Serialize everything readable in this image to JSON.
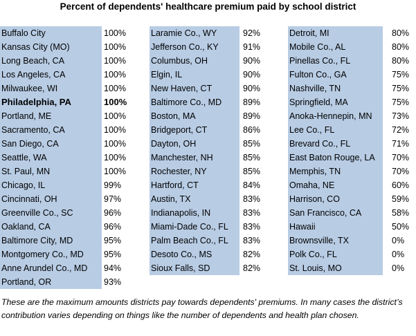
{
  "title": "Percent of dependents' healthcare premium paid by school district",
  "columns": [
    [
      {
        "name": "Buffalo City",
        "value": "100%"
      },
      {
        "name": "Kansas City (MO)",
        "value": "100%"
      },
      {
        "name": "Long Beach, CA",
        "value": "100%"
      },
      {
        "name": "Los Angeles, CA",
        "value": "100%"
      },
      {
        "name": "Milwaukee, WI",
        "value": "100%"
      },
      {
        "name": "Philadelphia, PA",
        "value": "100%",
        "bold": true
      },
      {
        "name": "Portland, ME",
        "value": "100%"
      },
      {
        "name": "Sacramento, CA",
        "value": "100%"
      },
      {
        "name": "San Diego, CA",
        "value": "100%"
      },
      {
        "name": "Seattle, WA",
        "value": "100%"
      },
      {
        "name": "St. Paul, MN",
        "value": "100%"
      },
      {
        "name": "Chicago, IL",
        "value": "99%"
      },
      {
        "name": "Cincinnati, OH",
        "value": "97%"
      },
      {
        "name": "Greenville Co., SC",
        "value": "96%"
      },
      {
        "name": "Oakland, CA",
        "value": "96%"
      },
      {
        "name": "Baltimore City, MD",
        "value": "95%"
      },
      {
        "name": "Montgomery Co., MD",
        "value": "95%"
      },
      {
        "name": "Anne Arundel Co., MD",
        "value": "94%"
      },
      {
        "name": "Portland, OR",
        "value": "93%"
      }
    ],
    [
      {
        "name": "Laramie Co., WY",
        "value": "92%"
      },
      {
        "name": "Jefferson Co., KY",
        "value": "91%"
      },
      {
        "name": "Columbus, OH",
        "value": "90%"
      },
      {
        "name": "Elgin, IL",
        "value": "90%"
      },
      {
        "name": "New Haven, CT",
        "value": "90%"
      },
      {
        "name": "Baltimore Co., MD",
        "value": "89%"
      },
      {
        "name": "Boston, MA",
        "value": "89%"
      },
      {
        "name": "Bridgeport, CT",
        "value": "86%"
      },
      {
        "name": "Dayton, OH",
        "value": "85%"
      },
      {
        "name": "Manchester, NH",
        "value": "85%"
      },
      {
        "name": "Rochester, NY",
        "value": "85%"
      },
      {
        "name": "Hartford, CT",
        "value": "84%"
      },
      {
        "name": "Austin, TX",
        "value": "83%"
      },
      {
        "name": "Indianapolis, IN",
        "value": "83%"
      },
      {
        "name": "Miami-Dade Co., FL",
        "value": "83%"
      },
      {
        "name": "Palm Beach Co., FL",
        "value": "83%"
      },
      {
        "name": "Desoto Co., MS",
        "value": "82%"
      },
      {
        "name": "Sioux Falls, SD",
        "value": "82%"
      }
    ],
    [
      {
        "name": "Detroit, MI",
        "value": "80%"
      },
      {
        "name": "Mobile Co., AL",
        "value": "80%"
      },
      {
        "name": "Pinellas Co., FL",
        "value": "80%"
      },
      {
        "name": "Fulton Co., GA",
        "value": "75%"
      },
      {
        "name": "Nashville, TN",
        "value": "75%"
      },
      {
        "name": "Springfield, MA",
        "value": "75%"
      },
      {
        "name": "Anoka-Hennepin, MN",
        "value": "73%"
      },
      {
        "name": "Lee Co., FL",
        "value": "72%"
      },
      {
        "name": "Brevard Co., FL",
        "value": "71%"
      },
      {
        "name": "East Baton Rouge, LA",
        "value": "70%"
      },
      {
        "name": "Memphis, TN",
        "value": "70%"
      },
      {
        "name": "Omaha, NE",
        "value": "60%"
      },
      {
        "name": "Harrison, CO",
        "value": "59%"
      },
      {
        "name": "San Francisco, CA",
        "value": "58%"
      },
      {
        "name": "Hawaii",
        "value": "50%"
      },
      {
        "name": "Brownsville, TX",
        "value": "0%"
      },
      {
        "name": "Polk Co., FL",
        "value": "0%"
      },
      {
        "name": "St. Louis, MO",
        "value": "0%"
      }
    ]
  ],
  "note": "These are the maximum amounts districts pay towards dependents' premiums.  In many cases the district’s contribution varies depending on things like the number of dependents and health plan chosen.",
  "colors": {
    "name_cell_bg": "#b8cce4"
  }
}
